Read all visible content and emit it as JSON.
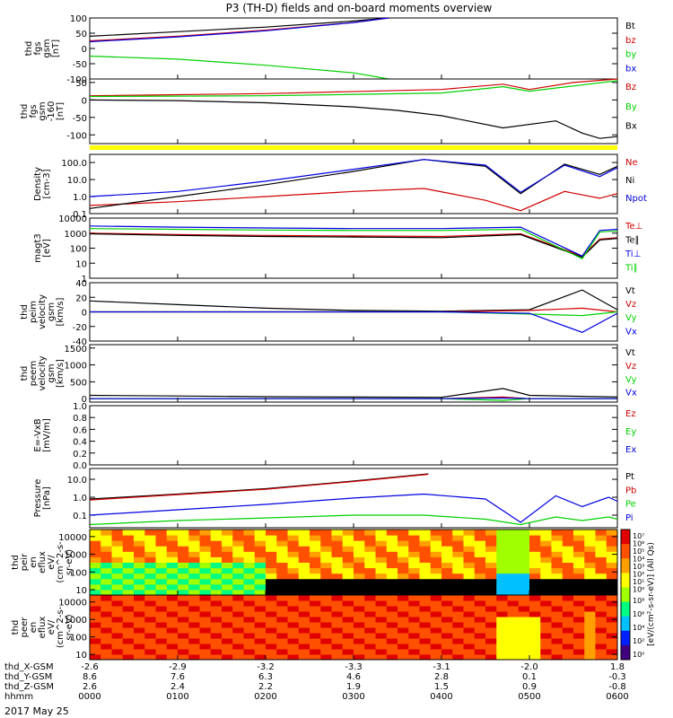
{
  "title": "P3 (TH-D) fields and on-board moments overview",
  "date_label": "2017 May 25",
  "colors": {
    "black": "#000000",
    "red": "#d00000",
    "green": "#00d000",
    "blue": "#0000e0",
    "yellow": "#ffff00"
  },
  "chart_data": [
    {
      "type": "line",
      "ylabel": [
        "thd",
        "fgs",
        "gsm",
        "[nT]"
      ],
      "ylim": [
        -100,
        100
      ],
      "y_ticks": [
        "100",
        "50",
        "0",
        "-50",
        "-100"
      ],
      "legend": [
        "Bt",
        "bz",
        "by",
        "bx"
      ],
      "series": [
        {
          "name": "Bt",
          "x": [
            0,
            1,
            2,
            3,
            3.4
          ],
          "values": [
            40,
            55,
            70,
            90,
            100
          ]
        },
        {
          "name": "bz",
          "x": [
            0,
            1,
            2,
            3,
            3.4
          ],
          "values": [
            25,
            40,
            60,
            85,
            100
          ]
        },
        {
          "name": "by",
          "x": [
            0,
            1,
            2,
            3,
            3.4
          ],
          "values": [
            -25,
            -35,
            -55,
            -80,
            -100
          ]
        },
        {
          "name": "bx",
          "x": [
            0,
            1,
            2,
            3,
            3.4
          ],
          "values": [
            22,
            38,
            58,
            85,
            100
          ]
        }
      ]
    },
    {
      "type": "line",
      "ylabel": [
        "thd",
        "fgs",
        "gsm",
        "-160",
        "[nT]"
      ],
      "ylim": [
        -125,
        60
      ],
      "y_ticks": [
        "50",
        "0",
        "-50",
        "-100"
      ],
      "legend": [
        "Bz",
        "By",
        "Bx"
      ],
      "series": [
        {
          "name": "Bz",
          "x": [
            0,
            2,
            4,
            4.7,
            5.0,
            5.5,
            6
          ],
          "values": [
            12,
            18,
            30,
            45,
            30,
            50,
            60
          ]
        },
        {
          "name": "By",
          "x": [
            0,
            2,
            4,
            4.7,
            5.0,
            5.5,
            6
          ],
          "values": [
            10,
            12,
            20,
            38,
            25,
            40,
            55
          ]
        },
        {
          "name": "Bx",
          "x": [
            0,
            1,
            2,
            3,
            3.5,
            4,
            4.7,
            5.3,
            5.6,
            5.8,
            6
          ],
          "values": [
            0,
            -2,
            -8,
            -20,
            -30,
            -45,
            -80,
            -60,
            -95,
            -110,
            -105
          ]
        }
      ]
    },
    {
      "type": "line",
      "ylabel": [
        "Density",
        "[cm-3]"
      ],
      "scale": "log",
      "ylim": [
        0.1,
        300
      ],
      "y_ticks": [
        "100.0",
        "10.0",
        "1.0",
        "0.1"
      ],
      "legend": [
        "Ne",
        "Ni",
        "Npot"
      ],
      "series": [
        {
          "name": "Ne",
          "x": [
            0,
            1,
            2,
            3,
            3.8,
            4.5,
            4.9,
            5.4,
            5.8,
            6
          ],
          "values": [
            0.3,
            0.5,
            1,
            2,
            3,
            0.6,
            0.15,
            2,
            0.8,
            1.5
          ]
        },
        {
          "name": "Ni",
          "x": [
            0,
            1,
            2,
            3,
            3.8,
            4.5,
            4.9,
            5.4,
            5.8,
            6
          ],
          "values": [
            0.2,
            1,
            5,
            30,
            150,
            60,
            1.5,
            80,
            20,
            60
          ]
        },
        {
          "name": "Npot",
          "x": [
            0,
            1,
            2,
            3,
            3.8,
            4.5,
            4.9,
            5.4,
            5.8,
            6
          ],
          "values": [
            1,
            2,
            8,
            40,
            150,
            70,
            1.8,
            70,
            15,
            50
          ]
        }
      ]
    },
    {
      "type": "line",
      "ylabel": [
        "magt3",
        "[eV]"
      ],
      "scale": "log",
      "ylim": [
        1,
        10000
      ],
      "y_ticks": [
        "10000",
        "1000",
        "100",
        "10",
        "1"
      ],
      "legend": [
        "Te⊥",
        "Te∥",
        "Ti⊥",
        "Ti∥"
      ],
      "series": [
        {
          "name": "Te⊥",
          "x": [
            0,
            1,
            2,
            3,
            4,
            4.9,
            5.6,
            5.8,
            6
          ],
          "values": [
            1000,
            800,
            700,
            650,
            600,
            900,
            30,
            400,
            500
          ]
        },
        {
          "name": "Te∥",
          "x": [
            0,
            1,
            2,
            3,
            4,
            4.9,
            5.6,
            5.8,
            6
          ],
          "values": [
            900,
            700,
            600,
            550,
            500,
            800,
            25,
            350,
            450
          ]
        },
        {
          "name": "Ti⊥",
          "x": [
            0,
            1,
            2,
            3,
            4,
            4.9,
            5.6,
            5.8,
            6
          ],
          "values": [
            3000,
            2500,
            2200,
            2000,
            2000,
            2500,
            30,
            1500,
            1800
          ]
        },
        {
          "name": "Ti∥",
          "x": [
            0,
            1,
            2,
            3,
            4,
            4.9,
            5.6,
            5.8,
            6
          ],
          "values": [
            2000,
            1800,
            1600,
            1500,
            1500,
            1800,
            20,
            1200,
            1400
          ]
        }
      ]
    },
    {
      "type": "line",
      "ylabel": [
        "thd",
        "peim",
        "velocity",
        "gsm",
        "[km/s]"
      ],
      "ylim": [
        -40,
        40
      ],
      "y_ticks": [
        "40",
        "20",
        "0",
        "-20",
        "-40"
      ],
      "legend": [
        "Vt",
        "Vz",
        "Vy",
        "Vx"
      ],
      "series": [
        {
          "name": "Vt",
          "x": [
            0,
            1,
            2,
            3,
            4,
            5,
            5.6,
            6
          ],
          "values": [
            15,
            10,
            5,
            2,
            1,
            3,
            30,
            3
          ]
        },
        {
          "name": "Vz",
          "x": [
            0,
            1,
            2,
            3,
            4,
            5,
            5.6,
            6
          ],
          "values": [
            0,
            0,
            0,
            0,
            0,
            2,
            5,
            0
          ]
        },
        {
          "name": "Vy",
          "x": [
            0,
            1,
            2,
            3,
            4,
            5,
            5.6,
            6
          ],
          "values": [
            0,
            0,
            0,
            0,
            0,
            -3,
            -5,
            0
          ]
        },
        {
          "name": "Vx",
          "x": [
            0,
            1,
            2,
            3,
            4,
            5,
            5.6,
            6
          ],
          "values": [
            0,
            0,
            0,
            0,
            0,
            -2,
            -28,
            -2
          ]
        }
      ]
    },
    {
      "type": "line",
      "ylabel": [
        "thd",
        "peem",
        "velocity",
        "gsm",
        "[km/s]"
      ],
      "ylim": [
        -100,
        1600
      ],
      "y_ticks": [
        "1500",
        "1000",
        "500",
        "0"
      ],
      "legend": [
        "Vt",
        "Vz",
        "Vy",
        "Vx"
      ],
      "series": [
        {
          "name": "Vt",
          "x": [
            0,
            1,
            2,
            3,
            4,
            4.7,
            5,
            6
          ],
          "values": [
            100,
            80,
            60,
            50,
            40,
            300,
            100,
            50
          ]
        },
        {
          "name": "Vz",
          "x": [
            0,
            1,
            2,
            3,
            4,
            4.7,
            5,
            6
          ],
          "values": [
            0,
            0,
            0,
            0,
            0,
            50,
            0,
            0
          ]
        },
        {
          "name": "Vy",
          "x": [
            0,
            1,
            2,
            3,
            4,
            4.7,
            5,
            6
          ],
          "values": [
            0,
            0,
            0,
            0,
            0,
            -50,
            0,
            0
          ]
        },
        {
          "name": "Vx",
          "x": [
            0,
            1,
            2,
            3,
            4,
            4.7,
            5,
            6
          ],
          "values": [
            0,
            0,
            0,
            0,
            0,
            20,
            0,
            0
          ]
        }
      ]
    },
    {
      "type": "line",
      "ylabel": [
        "E=-VxB",
        "[mV/m]"
      ],
      "ylim": [
        0.0,
        1.0
      ],
      "y_ticks": [
        "1.0",
        "0.8",
        "0.6",
        "0.4",
        "0.2",
        "0.0"
      ],
      "legend": [
        "Ez",
        "Ey",
        "Ex"
      ],
      "series": []
    },
    {
      "type": "line",
      "ylabel": [
        "Pressure",
        "[nPa]"
      ],
      "scale": "log",
      "ylim": [
        0.02,
        40
      ],
      "y_ticks": [
        "10.0",
        "1.0",
        "0.1"
      ],
      "legend": [
        "Pt",
        "Pb",
        "Pe",
        "Pi"
      ],
      "series": [
        {
          "name": "Pt",
          "x": [
            0,
            1,
            2,
            3,
            3.85
          ],
          "values": [
            0.8,
            1.5,
            3,
            8,
            20
          ]
        },
        {
          "name": "Pb",
          "x": [
            0,
            1,
            2,
            3,
            3.85
          ],
          "values": [
            0.7,
            1.4,
            2.8,
            7.5,
            19
          ]
        },
        {
          "name": "Pe",
          "x": [
            0,
            1,
            2,
            3,
            3.8,
            4.5,
            4.9,
            5.3,
            5.6,
            5.9,
            6
          ],
          "values": [
            0.03,
            0.05,
            0.07,
            0.1,
            0.1,
            0.06,
            0.03,
            0.08,
            0.05,
            0.08,
            0.06
          ]
        },
        {
          "name": "Pi",
          "x": [
            0,
            1,
            2,
            3,
            3.8,
            4.5,
            4.9,
            5.3,
            5.6,
            5.9,
            6
          ],
          "values": [
            0.1,
            0.2,
            0.4,
            0.9,
            1.5,
            0.8,
            0.04,
            1.2,
            0.3,
            1.0,
            0.6
          ]
        }
      ]
    },
    {
      "type": "heatmap",
      "ylabel": [
        "thd",
        "peir",
        "en",
        "eflux",
        "eV/",
        "(cm^2-s-",
        "sr-eV)"
      ],
      "scale": "log",
      "ylim": [
        5,
        25000
      ],
      "y_ticks": [
        "10000",
        "1000",
        "100",
        "10"
      ]
    },
    {
      "type": "heatmap",
      "ylabel": [
        "thd",
        "peer",
        "en",
        "eflux",
        "eV/",
        "(cm^2-s-",
        "sr-eV)"
      ],
      "scale": "log",
      "ylim": [
        5,
        25000
      ],
      "y_ticks": [
        "10000",
        "1000",
        "100",
        "10"
      ]
    }
  ],
  "colorbar": {
    "top_ticks": [
      "10⁷",
      "10⁶",
      "10⁵",
      "10⁴",
      "10³",
      "10²",
      "10¹",
      "10⁰"
    ],
    "bottom_ticks": [
      "10⁸",
      "10⁶",
      "10⁴",
      "10²",
      "10⁰"
    ],
    "label": "[eV/(cm²-s-sr-eV)] (All Qs)"
  },
  "x_axis": {
    "rows": [
      {
        "label": "thd_X-GSM",
        "values": [
          "-2.6",
          "-2.9",
          "-3.2",
          "-3.3",
          "-3.1",
          "-2.0",
          "1.8"
        ]
      },
      {
        "label": "thd_Y-GSM",
        "values": [
          "8.6",
          "7.6",
          "6.3",
          "4.6",
          "2.8",
          "0.1",
          "-0.3"
        ]
      },
      {
        "label": "thd_Z-GSM",
        "values": [
          "2.6",
          "2.4",
          "2.2",
          "1.9",
          "1.5",
          "0.9",
          "-0.8"
        ]
      },
      {
        "label": "hhmm",
        "values": [
          "0000",
          "0100",
          "0200",
          "0300",
          "0400",
          "0500",
          "0600"
        ]
      }
    ]
  }
}
